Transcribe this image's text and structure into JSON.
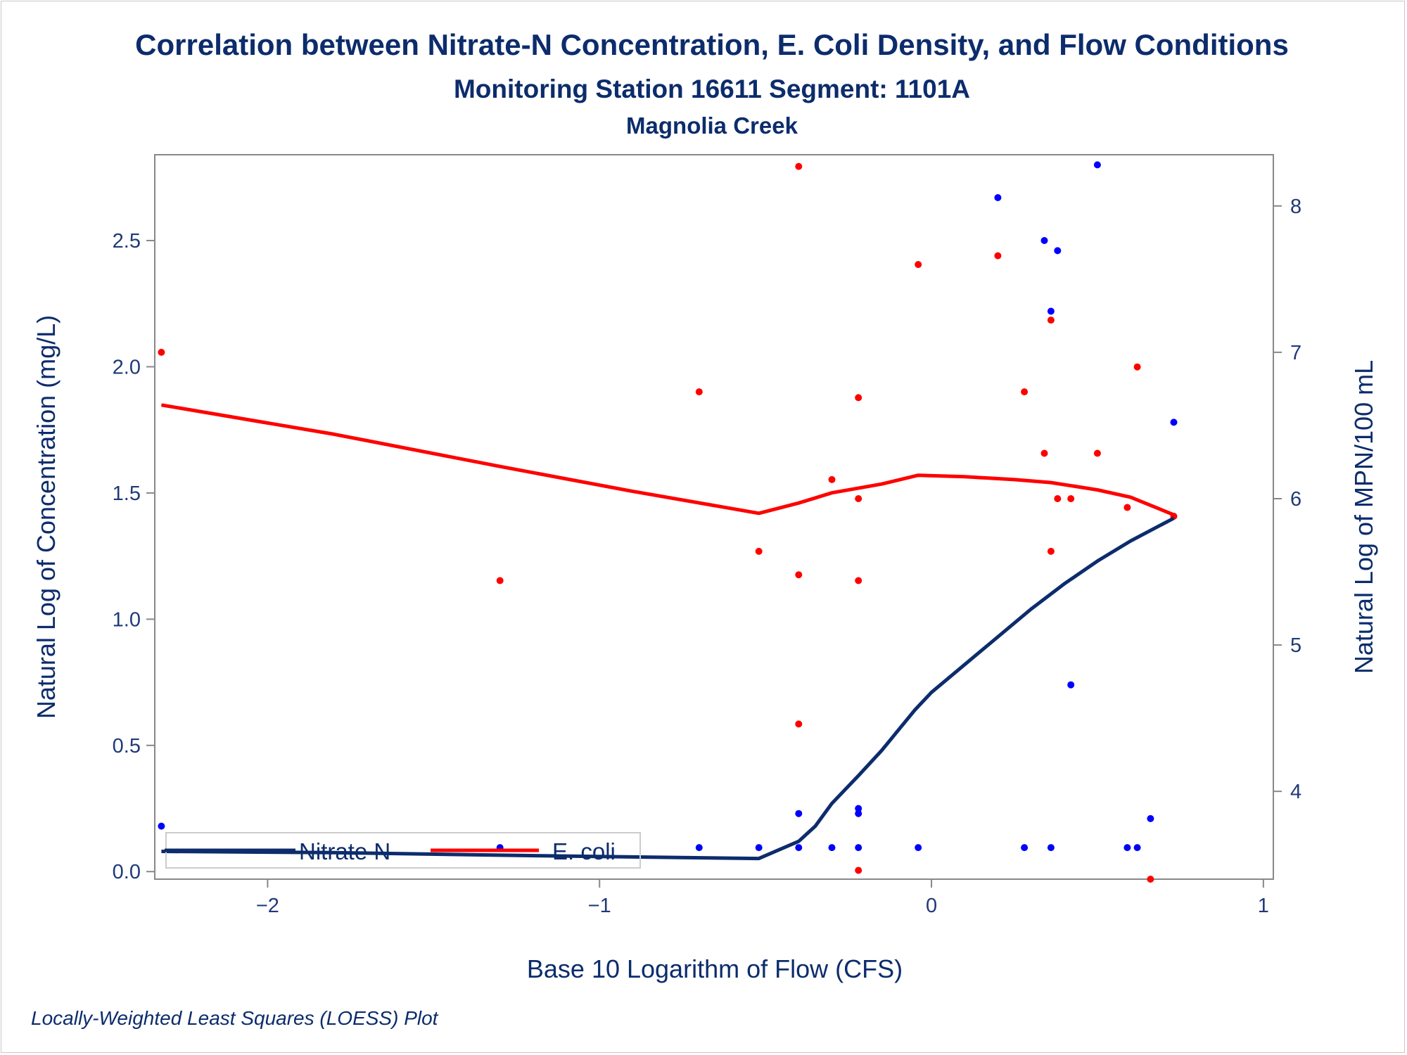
{
  "chart_data": {
    "type": "scatter",
    "title": "Correlation between Nitrate-N Concentration, E. Coli Density, and Flow Conditions",
    "subtitle": "Monitoring Station 16611 Segment: 1101A",
    "subtitle2": "Magnolia Creek",
    "footnote": "Locally-Weighted Least Squares (LOESS) Plot",
    "xlabel": "Base 10 Logarithm of Flow (CFS)",
    "ylabel": "Natural Log of Concentration (mg/L)",
    "y2label": "Natural Log of MPN/100 mL",
    "xlim": [
      -2.34,
      1.03
    ],
    "ylim": [
      -0.03,
      2.84
    ],
    "y2lim": [
      3.4,
      8.35
    ],
    "xticks": [
      -2,
      -1,
      0,
      1
    ],
    "yticks": [
      "0.0",
      "0.5",
      "1.0",
      "1.5",
      "2.0",
      "2.5"
    ],
    "y2ticks": [
      4,
      5,
      6,
      7,
      8
    ],
    "grid": false,
    "legend": {
      "position": "bottom-left inside",
      "entries": [
        "Nitrate N",
        "E. coli"
      ]
    },
    "series": [
      {
        "name": "Nitrate N",
        "axis": "left",
        "color": "#0000ff",
        "line_color": "#0c2c6c",
        "points": [
          [
            -2.32,
            0.18
          ],
          [
            -1.3,
            0.095
          ],
          [
            -0.7,
            0.095
          ],
          [
            -0.52,
            0.095
          ],
          [
            -0.4,
            0.23
          ],
          [
            -0.4,
            0.095
          ],
          [
            -0.3,
            0.095
          ],
          [
            -0.22,
            0.25
          ],
          [
            -0.22,
            0.23
          ],
          [
            -0.22,
            0.095
          ],
          [
            -0.04,
            0.095
          ],
          [
            0.2,
            2.67
          ],
          [
            0.28,
            0.095
          ],
          [
            0.34,
            2.5
          ],
          [
            0.36,
            2.22
          ],
          [
            0.36,
            0.095
          ],
          [
            0.38,
            2.46
          ],
          [
            0.42,
            0.74
          ],
          [
            0.5,
            2.8
          ],
          [
            0.59,
            0.095
          ],
          [
            0.62,
            0.095
          ],
          [
            0.66,
            0.21
          ],
          [
            0.73,
            1.78
          ]
        ],
        "loess": [
          [
            -2.32,
            0.08
          ],
          [
            -1.8,
            0.075
          ],
          [
            -1.3,
            0.065
          ],
          [
            -0.9,
            0.058
          ],
          [
            -0.52,
            0.052
          ],
          [
            -0.4,
            0.12
          ],
          [
            -0.35,
            0.18
          ],
          [
            -0.3,
            0.27
          ],
          [
            -0.22,
            0.38
          ],
          [
            -0.15,
            0.48
          ],
          [
            -0.05,
            0.64
          ],
          [
            0.0,
            0.71
          ],
          [
            0.1,
            0.82
          ],
          [
            0.2,
            0.93
          ],
          [
            0.3,
            1.04
          ],
          [
            0.4,
            1.14
          ],
          [
            0.5,
            1.23
          ],
          [
            0.6,
            1.31
          ],
          [
            0.73,
            1.4
          ]
        ]
      },
      {
        "name": "E. coli",
        "axis": "right",
        "color": "#ff0000",
        "line_color": "#ff0000",
        "points": [
          [
            -2.32,
            7.0
          ],
          [
            -1.3,
            5.44
          ],
          [
            -0.7,
            6.73
          ],
          [
            -0.52,
            5.64
          ],
          [
            -0.4,
            8.27
          ],
          [
            -0.4,
            5.48
          ],
          [
            -0.4,
            4.46
          ],
          [
            -0.3,
            6.13
          ],
          [
            -0.22,
            6.69
          ],
          [
            -0.22,
            6.0
          ],
          [
            -0.22,
            5.44
          ],
          [
            -0.22,
            3.46
          ],
          [
            -0.04,
            7.6
          ],
          [
            0.2,
            7.66
          ],
          [
            0.28,
            6.73
          ],
          [
            0.34,
            6.31
          ],
          [
            0.36,
            7.22
          ],
          [
            0.36,
            5.64
          ],
          [
            0.38,
            6.0
          ],
          [
            0.42,
            6.0
          ],
          [
            0.5,
            6.31
          ],
          [
            0.59,
            5.94
          ],
          [
            0.62,
            6.9
          ],
          [
            0.66,
            3.4
          ],
          [
            0.73,
            5.88
          ]
        ],
        "loess": [
          [
            -2.32,
            6.64
          ],
          [
            -1.8,
            6.44
          ],
          [
            -1.3,
            6.22
          ],
          [
            -0.9,
            6.05
          ],
          [
            -0.52,
            5.9
          ],
          [
            -0.4,
            5.97
          ],
          [
            -0.3,
            6.04
          ],
          [
            -0.15,
            6.1
          ],
          [
            -0.04,
            6.16
          ],
          [
            0.1,
            6.15
          ],
          [
            0.25,
            6.13
          ],
          [
            0.36,
            6.11
          ],
          [
            0.5,
            6.06
          ],
          [
            0.6,
            6.01
          ],
          [
            0.73,
            5.89
          ]
        ]
      }
    ]
  }
}
